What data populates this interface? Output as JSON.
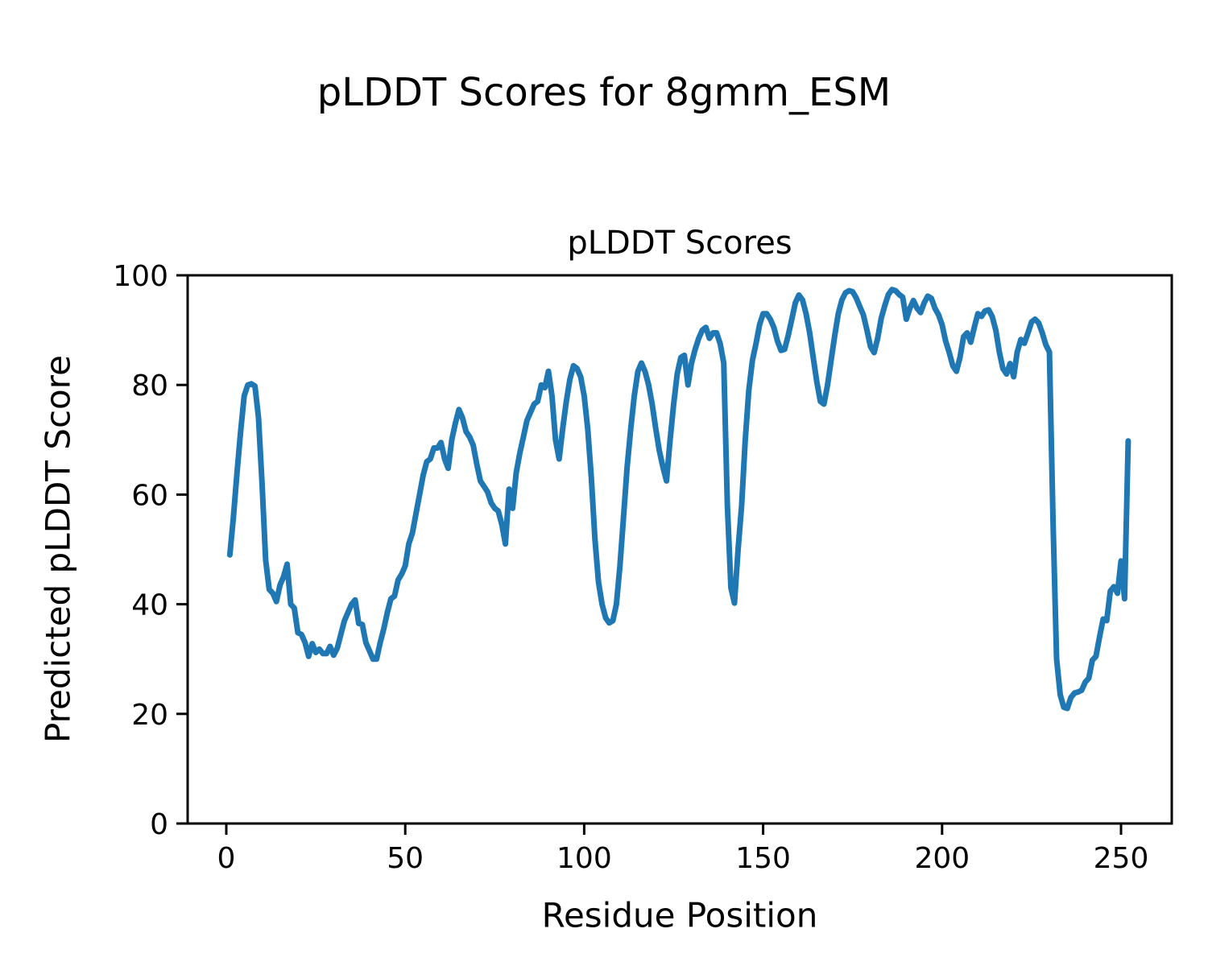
{
  "figure": {
    "suptitle": "pLDDT Scores for 8gmm_ESM",
    "axes_title": "pLDDT Scores",
    "xlabel": "Residue Position",
    "ylabel": "Predicted pLDDT Score"
  },
  "colors": {
    "line": "#1f77b4",
    "axis": "#000000",
    "text": "#000000",
    "background": "#ffffff"
  },
  "chart_data": {
    "type": "line",
    "title": "pLDDT Scores",
    "xlabel": "Residue Position",
    "ylabel": "Predicted pLDDT Score",
    "legend": "none",
    "grid": false,
    "ylim": [
      0,
      100
    ],
    "xlim": [
      -12,
      264
    ],
    "x_ticks": [
      0,
      50,
      100,
      150,
      200,
      250
    ],
    "y_ticks": [
      0,
      20,
      40,
      60,
      80,
      100
    ],
    "x_start": 1,
    "x_step": 1,
    "series_name": "pLDDT",
    "values": [
      49,
      56,
      64,
      71.5,
      78,
      80,
      80.2,
      79.8,
      74,
      62,
      48,
      42.7,
      42,
      40.5,
      43.5,
      45,
      47.3,
      40,
      39.3,
      34.8,
      34.5,
      33,
      30.5,
      32.8,
      31.2,
      31.8,
      31,
      31,
      32.3,
      30.7,
      32,
      34.5,
      37,
      38.5,
      40,
      40.8,
      36.5,
      36.3,
      33,
      31.5,
      30,
      30,
      33,
      35.5,
      38.5,
      41,
      41.5,
      44.4,
      45.5,
      47,
      51,
      53,
      56.5,
      60,
      63.5,
      66,
      66.5,
      68.5,
      68.5,
      69.5,
      66.5,
      64.8,
      70,
      73,
      75.5,
      74,
      71.5,
      70.5,
      69,
      65.5,
      62.5,
      61.5,
      60.5,
      58.5,
      57.5,
      57,
      54.5,
      51,
      61,
      57.5,
      64,
      67.5,
      70.5,
      73.5,
      75,
      76.5,
      77,
      80,
      79.5,
      82.5,
      78,
      70,
      66.5,
      72,
      77,
      81,
      83.5,
      83,
      81.5,
      78,
      72,
      63,
      52,
      44,
      40,
      37.5,
      36.6,
      37,
      40,
      47,
      56,
      65,
      72,
      78,
      82.5,
      84,
      82.5,
      80,
      76.5,
      72,
      68,
      65,
      62.5,
      70,
      76.5,
      82,
      85,
      85.4,
      80,
      84,
      86.5,
      88.5,
      90,
      90.5,
      88.5,
      89.5,
      89.5,
      87.5,
      84,
      58,
      43,
      40.2,
      50,
      58,
      70,
      79,
      84.5,
      87.5,
      91,
      93,
      93,
      92,
      90.5,
      88,
      86.3,
      86.5,
      89,
      92,
      95,
      96.4,
      95.5,
      93,
      89.5,
      85,
      80.5,
      77,
      76.5,
      80,
      84.5,
      89,
      93,
      95.5,
      96.8,
      97.2,
      97,
      95.9,
      94.3,
      92.8,
      90,
      87,
      85.9,
      88.5,
      92.2,
      94.5,
      96.5,
      97.4,
      97.2,
      96.5,
      96,
      92,
      94,
      95.4,
      94,
      93.2,
      95,
      96.2,
      95.8,
      94,
      92.8,
      91,
      88,
      85.9,
      83.5,
      82.5,
      85,
      88.8,
      89.5,
      87.8,
      90.5,
      93,
      92.5,
      93.5,
      93.7,
      92.5,
      90,
      86,
      83,
      82,
      83.9,
      81.5,
      86,
      88.3,
      87.6,
      89.5,
      91.5,
      92,
      91.3,
      89.5,
      87.3,
      86,
      55,
      30,
      23.5,
      21.2,
      21,
      23,
      23.8,
      24,
      24.3,
      25.8,
      26.5,
      29.8,
      30.5,
      34,
      37.3,
      37,
      42.4,
      43.2,
      42,
      47.9,
      41,
      69.8
    ]
  }
}
